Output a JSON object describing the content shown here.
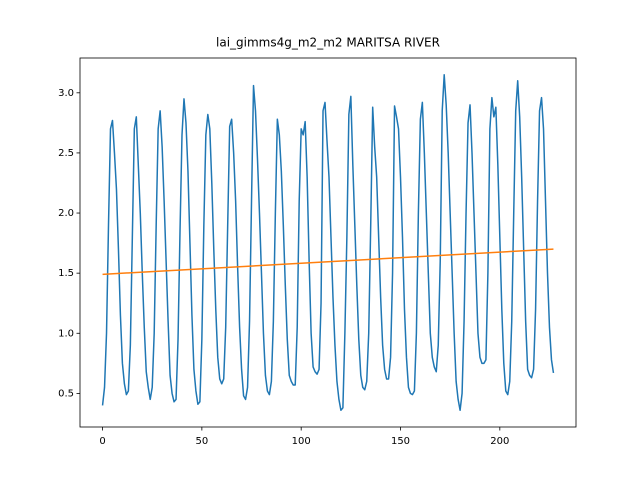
{
  "chart_data": {
    "type": "line",
    "title": "lai_gimms4g_m2_m2 MARITSA RIVER",
    "xlim": [
      -11.35,
      238.35
    ],
    "ylim": [
      0.2205,
      3.2895
    ],
    "xticks": [
      0,
      50,
      100,
      150,
      200
    ],
    "yticks": [
      {
        "value": 0.5,
        "label": "0.5"
      },
      {
        "value": 1.0,
        "label": "1.0"
      },
      {
        "value": 1.5,
        "label": "1.5"
      },
      {
        "value": 2.0,
        "label": "2.0"
      },
      {
        "value": 2.5,
        "label": "2.5"
      },
      {
        "value": 3.0,
        "label": "3.0"
      }
    ],
    "series": [
      {
        "color": "#1f77b4",
        "x": [
          0,
          1,
          2,
          3,
          4,
          5,
          6,
          7,
          8,
          9,
          10,
          11,
          12,
          13,
          14,
          15,
          16,
          17,
          18,
          19,
          20,
          21,
          22,
          23,
          24,
          25,
          26,
          27,
          28,
          29,
          30,
          31,
          32,
          33,
          34,
          35,
          36,
          37,
          38,
          39,
          40,
          41,
          42,
          43,
          44,
          45,
          46,
          47,
          48,
          49,
          50,
          51,
          52,
          53,
          54,
          55,
          56,
          57,
          58,
          59,
          60,
          61,
          62,
          63,
          64,
          65,
          66,
          67,
          68,
          69,
          70,
          71,
          72,
          73,
          74,
          75,
          76,
          77,
          78,
          79,
          80,
          81,
          82,
          83,
          84,
          85,
          86,
          87,
          88,
          89,
          90,
          91,
          92,
          93,
          94,
          95,
          96,
          97,
          98,
          99,
          100,
          101,
          102,
          103,
          104,
          105,
          106,
          107,
          108,
          109,
          110,
          111,
          112,
          113,
          114,
          115,
          116,
          117,
          118,
          119,
          120,
          121,
          122,
          123,
          124,
          125,
          126,
          127,
          128,
          129,
          130,
          131,
          132,
          133,
          134,
          135,
          136,
          137,
          138,
          139,
          140,
          141,
          142,
          143,
          144,
          145,
          146,
          147,
          148,
          149,
          150,
          151,
          152,
          153,
          154,
          155,
          156,
          157,
          158,
          159,
          160,
          161,
          162,
          163,
          164,
          165,
          166,
          167,
          168,
          169,
          170,
          171,
          172,
          173,
          174,
          175,
          176,
          177,
          178,
          179,
          180,
          181,
          182,
          183,
          184,
          185,
          186,
          187,
          188,
          189,
          190,
          191,
          192,
          193,
          194,
          195,
          196,
          197,
          198,
          199,
          200,
          201,
          202,
          203,
          204,
          205,
          206,
          207,
          208,
          209,
          210,
          211,
          212,
          213,
          214,
          215,
          216,
          217,
          218,
          219,
          220,
          221,
          222,
          223,
          224,
          225,
          226,
          227
        ],
        "values": [
          0.4,
          0.55,
          1.0,
          1.9,
          2.7,
          2.77,
          2.5,
          2.2,
          1.7,
          1.15,
          0.75,
          0.58,
          0.49,
          0.52,
          0.9,
          1.8,
          2.7,
          2.8,
          2.4,
          2.0,
          1.5,
          1.05,
          0.68,
          0.55,
          0.45,
          0.55,
          1.0,
          1.9,
          2.7,
          2.85,
          2.55,
          2.1,
          1.6,
          1.1,
          0.65,
          0.5,
          0.43,
          0.45,
          0.95,
          1.85,
          2.65,
          2.95,
          2.75,
          2.35,
          1.75,
          1.15,
          0.7,
          0.52,
          0.41,
          0.43,
          0.95,
          1.9,
          2.65,
          2.82,
          2.7,
          2.25,
          1.7,
          1.2,
          0.8,
          0.62,
          0.58,
          0.62,
          1.05,
          1.9,
          2.72,
          2.78,
          2.5,
          2.1,
          1.55,
          1.05,
          0.7,
          0.48,
          0.45,
          0.55,
          1.1,
          2.1,
          3.06,
          2.85,
          2.45,
          2.0,
          1.5,
          1.0,
          0.65,
          0.52,
          0.49,
          0.6,
          1.1,
          2.0,
          2.78,
          2.65,
          2.35,
          1.9,
          1.4,
          0.95,
          0.65,
          0.6,
          0.57,
          0.57,
          1.05,
          2.1,
          2.7,
          2.65,
          2.76,
          2.3,
          1.6,
          1.0,
          0.72,
          0.68,
          0.66,
          0.7,
          1.25,
          2.85,
          2.92,
          2.6,
          2.3,
          1.8,
          1.3,
          0.9,
          0.6,
          0.45,
          0.36,
          0.38,
          1.0,
          1.8,
          2.82,
          2.97,
          2.4,
          1.9,
          1.4,
          0.95,
          0.65,
          0.55,
          0.53,
          0.6,
          1.0,
          1.9,
          2.88,
          2.55,
          2.3,
          1.8,
          1.3,
          0.9,
          0.7,
          0.62,
          0.62,
          0.8,
          1.5,
          2.89,
          2.8,
          2.7,
          2.3,
          1.8,
          1.2,
          0.8,
          0.55,
          0.5,
          0.49,
          0.52,
          1.0,
          2.0,
          2.78,
          2.92,
          2.5,
          2.0,
          1.5,
          1.0,
          0.8,
          0.72,
          0.68,
          0.9,
          1.6,
          2.85,
          3.15,
          2.9,
          2.5,
          2.0,
          1.5,
          1.0,
          0.6,
          0.45,
          0.36,
          0.5,
          1.1,
          2.0,
          2.75,
          2.9,
          2.5,
          2.0,
          1.5,
          1.0,
          0.8,
          0.75,
          0.75,
          0.78,
          1.5,
          2.7,
          2.96,
          2.8,
          2.88,
          2.4,
          1.8,
          1.2,
          0.75,
          0.52,
          0.49,
          0.6,
          1.1,
          2.0,
          2.85,
          3.1,
          2.8,
          2.3,
          1.7,
          1.1,
          0.7,
          0.65,
          0.63,
          0.7,
          1.2,
          2.1,
          2.85,
          2.96,
          2.7,
          2.1,
          1.5,
          1.05,
          0.78,
          0.67
        ]
      },
      {
        "color": "#ff7f0e",
        "x": [
          0,
          227
        ],
        "values": [
          1.49,
          1.7
        ]
      }
    ]
  }
}
